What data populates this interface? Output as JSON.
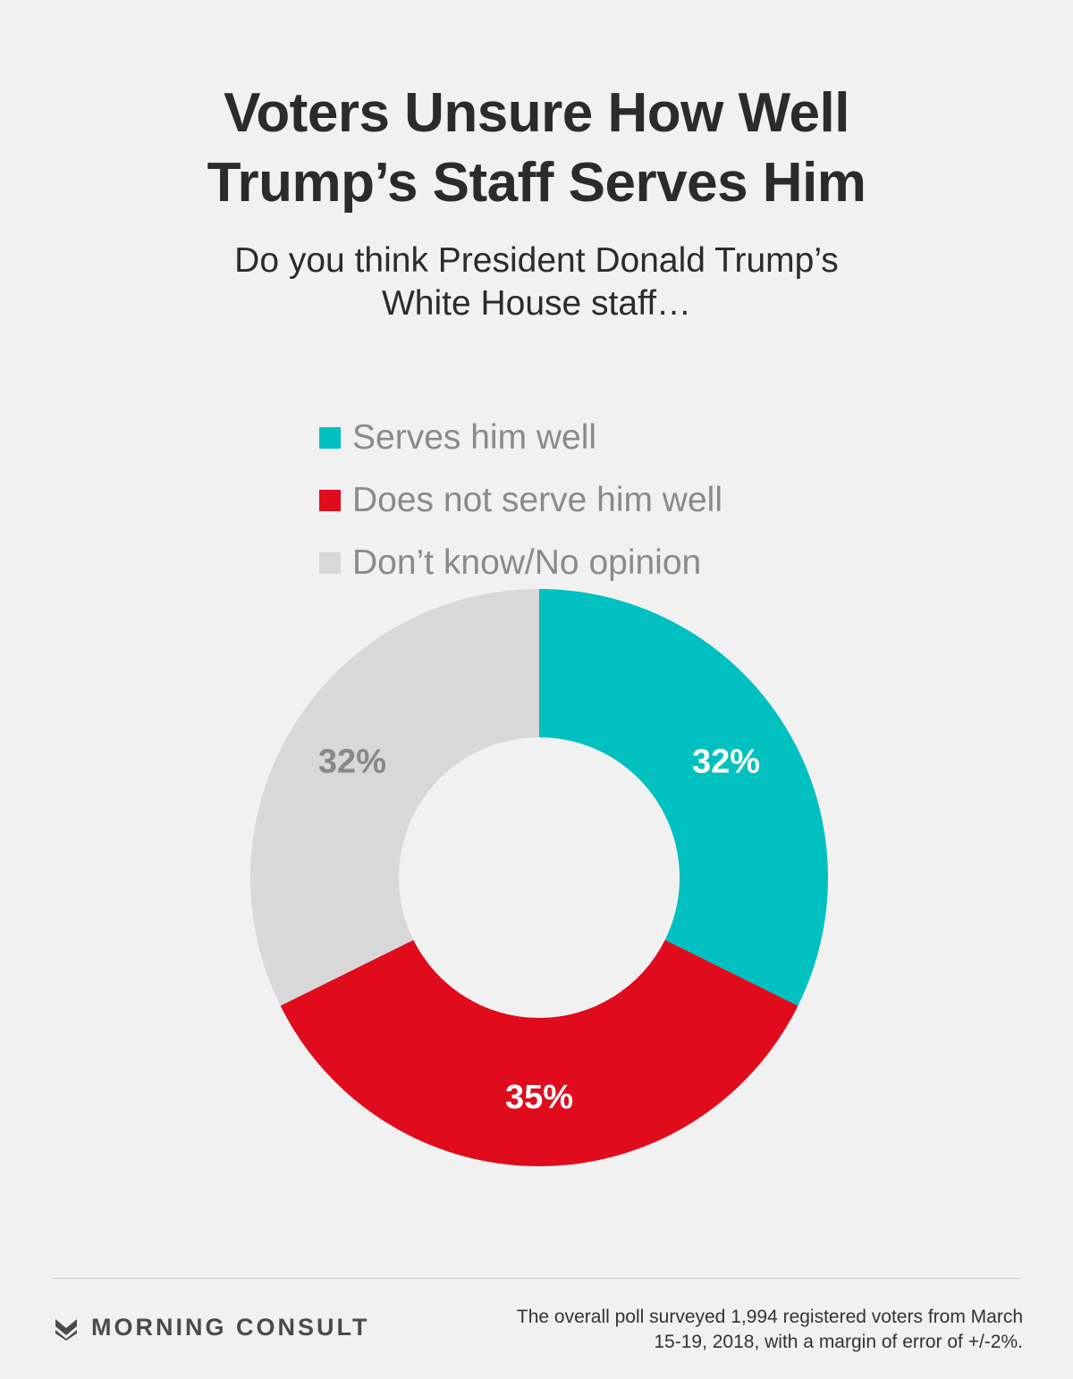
{
  "title_lines": [
    "Voters Unsure How Well",
    "Trump’s Staff Serves Him"
  ],
  "subtitle_lines": [
    "Do you think President Donald Trump’s",
    "White House staff…"
  ],
  "legend": [
    {
      "label": "Serves him well",
      "color": "#00c0c0"
    },
    {
      "label": "Does not serve him well",
      "color": "#e00b1c"
    },
    {
      "label": "Don’t know/No opinion",
      "color": "#d8d8d8"
    }
  ],
  "chart_data": {
    "type": "pie",
    "donut": true,
    "start_angle_deg": 0,
    "direction": "clockwise",
    "slices": [
      {
        "label": "Serves him well",
        "value": 32,
        "display": "32%",
        "color": "#00c0c0",
        "label_color": "#ffffff"
      },
      {
        "label": "Does not serve him well",
        "value": 35,
        "display": "35%",
        "color": "#e00b1c",
        "label_color": "#ffffff"
      },
      {
        "label": "Don’t know/No opinion",
        "value": 32,
        "display": "32%",
        "color": "#d8d8d8",
        "label_color": "#888888"
      }
    ]
  },
  "footer": {
    "brand": "MORNING CONSULT",
    "note_lines": [
      "The overall poll surveyed 1,994 registered voters from March",
      "15-19, 2018, with a margin of error of +/-2%."
    ]
  }
}
